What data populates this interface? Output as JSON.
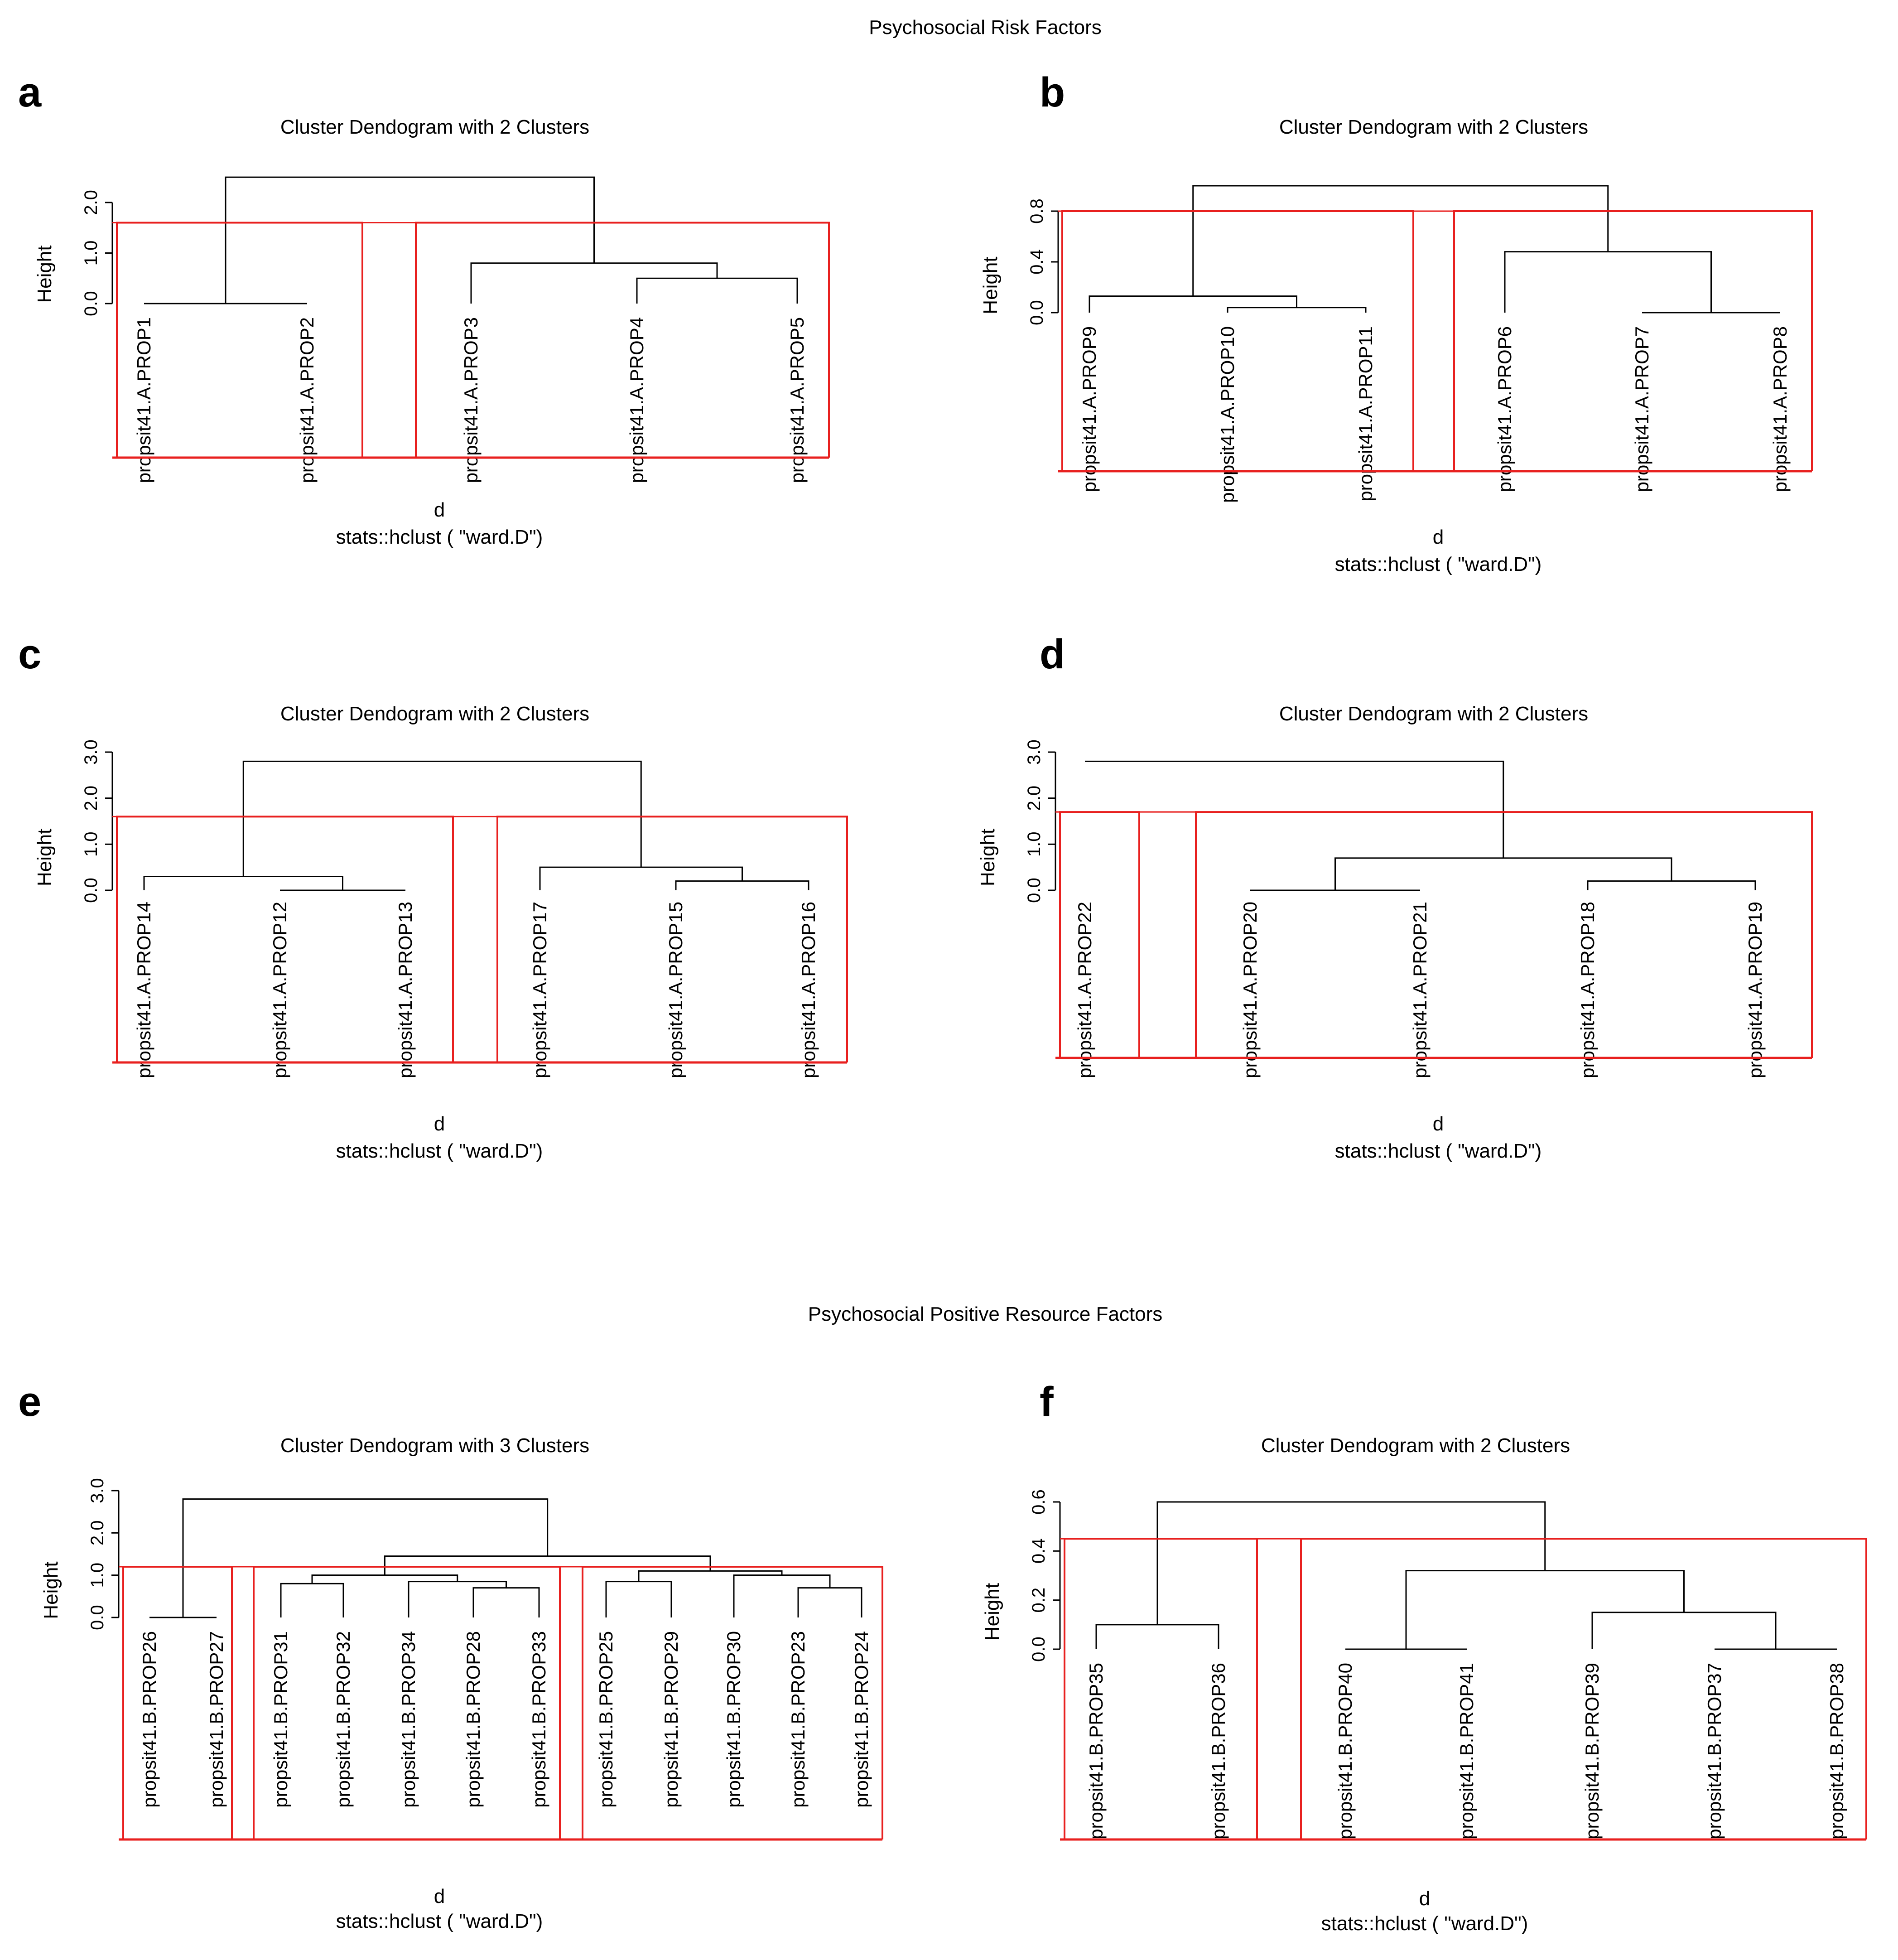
{
  "sections": [
    {
      "title": "Psychosocial Risk Factors"
    },
    {
      "title": "Psychosocial Positive Resource Factors"
    }
  ],
  "chart_data": [
    {
      "type": "dendrogram",
      "panel": "a",
      "title": "Cluster Dendogram with 2 Clusters",
      "ylabel": "Height",
      "xlabel": "d",
      "sublabel": "stats::hclust (  \"ward.D\")",
      "yticks": [
        "0.0",
        "1.0",
        "2.0"
      ],
      "ylim": [
        0,
        2.6
      ],
      "cut_height": 1.6,
      "leaves": [
        "propsit41.A.PROP1",
        "propsit41.A.PROP2",
        "propsit41.A.PROP3",
        "propsit41.A.PROP4",
        "propsit41.A.PROP5"
      ],
      "merges": [
        {
          "a": 0,
          "b": 1,
          "height": 0.0
        },
        {
          "a": 3,
          "b": 4,
          "height": 0.5
        },
        {
          "a": 2,
          "b": -2,
          "height": 0.8
        },
        {
          "a": -1,
          "b": -3,
          "height": 2.5
        }
      ],
      "clusters": [
        [
          0,
          1
        ],
        [
          2,
          3,
          4
        ]
      ]
    },
    {
      "type": "dendrogram",
      "panel": "b",
      "title": "Cluster Dendogram with 2 Clusters",
      "ylabel": "Height",
      "xlabel": "d",
      "sublabel": "stats::hclust (  \"ward.D\")",
      "yticks": [
        "0.0",
        "0.4",
        "0.8"
      ],
      "ylim": [
        0,
        1.0
      ],
      "cut_height": 0.8,
      "leaves": [
        "propsit41.A.PROP9",
        "propsit41.A.PROP10",
        "propsit41.A.PROP11",
        "propsit41.A.PROP6",
        "propsit41.A.PROP7",
        "propsit41.A.PROP8"
      ],
      "merges": [
        {
          "a": 1,
          "b": 2,
          "height": 0.04
        },
        {
          "a": 0,
          "b": -1,
          "height": 0.13
        },
        {
          "a": 4,
          "b": 5,
          "height": 0.0
        },
        {
          "a": 3,
          "b": -3,
          "height": 0.48
        },
        {
          "a": -2,
          "b": -4,
          "height": 1.0
        }
      ],
      "clusters": [
        [
          0,
          1,
          2
        ],
        [
          3,
          4,
          5
        ]
      ]
    },
    {
      "type": "dendrogram",
      "panel": "c",
      "title": "Cluster Dendogram with 2 Clusters",
      "ylabel": "Height",
      "xlabel": "d",
      "sublabel": "stats::hclust (  \"ward.D\")",
      "yticks": [
        "0.0",
        "1.0",
        "2.0",
        "3.0"
      ],
      "ylim": [
        0,
        3.0
      ],
      "cut_height": 1.6,
      "leaves": [
        "propsit41.A.PROP14",
        "propsit41.A.PROP12",
        "propsit41.A.PROP13",
        "propsit41.A.PROP17",
        "propsit41.A.PROP15",
        "propsit41.A.PROP16"
      ],
      "merges": [
        {
          "a": 1,
          "b": 2,
          "height": 0.0
        },
        {
          "a": 0,
          "b": -1,
          "height": 0.3
        },
        {
          "a": 4,
          "b": 5,
          "height": 0.2
        },
        {
          "a": 3,
          "b": -3,
          "height": 0.5
        },
        {
          "a": -2,
          "b": -4,
          "height": 2.8
        }
      ],
      "clusters": [
        [
          0,
          1,
          2
        ],
        [
          3,
          4,
          5
        ]
      ]
    },
    {
      "type": "dendrogram",
      "panel": "d",
      "title": "Cluster Dendogram with 2 Clusters",
      "ylabel": "Height",
      "xlabel": "d",
      "sublabel": "stats::hclust (  \"ward.D\")",
      "yticks": [
        "0.0",
        "1.0",
        "2.0",
        "3.0"
      ],
      "ylim": [
        0,
        3.0
      ],
      "cut_height": 1.7,
      "leaves": [
        "propsit41.A.PROP22",
        "propsit41.A.PROP20",
        "propsit41.A.PROP21",
        "propsit41.A.PROP18",
        "propsit41.A.PROP19"
      ],
      "leaf_heights": [
        2.8,
        0,
        0,
        0,
        0
      ],
      "merges": [
        {
          "a": 1,
          "b": 2,
          "height": 0.0
        },
        {
          "a": 3,
          "b": 4,
          "height": 0.2
        },
        {
          "a": -1,
          "b": -2,
          "height": 0.7
        },
        {
          "a": 0,
          "b": -3,
          "height": 2.8
        }
      ],
      "clusters": [
        [
          0
        ],
        [
          1,
          2,
          3,
          4
        ]
      ]
    },
    {
      "type": "dendrogram",
      "panel": "e",
      "title": "Cluster Dendogram with 3 Clusters",
      "ylabel": "Height",
      "xlabel": "d",
      "sublabel": "stats::hclust (  \"ward.D\")",
      "yticks": [
        "0.0",
        "1.0",
        "2.0",
        "3.0"
      ],
      "ylim": [
        0,
        3.0
      ],
      "cut_height": 1.2,
      "leaves": [
        "propsit41.B.PROP26",
        "propsit41.B.PROP27",
        "propsit41.B.PROP31",
        "propsit41.B.PROP32",
        "propsit41.B.PROP34",
        "propsit41.B.PROP28",
        "propsit41.B.PROP33",
        "propsit41.B.PROP25",
        "propsit41.B.PROP29",
        "propsit41.B.PROP30",
        "propsit41.B.PROP23",
        "propsit41.B.PROP24"
      ],
      "merges": [
        {
          "a": 0,
          "b": 1,
          "height": 0.0
        },
        {
          "a": 5,
          "b": 6,
          "height": 0.7
        },
        {
          "a": 4,
          "b": -2,
          "height": 0.85
        },
        {
          "a": 2,
          "b": 3,
          "height": 0.8
        },
        {
          "a": -4,
          "b": -3,
          "height": 1.0
        },
        {
          "a": 7,
          "b": 8,
          "height": 0.85
        },
        {
          "a": 10,
          "b": 11,
          "height": 0.7
        },
        {
          "a": 9,
          "b": -7,
          "height": 1.0
        },
        {
          "a": -6,
          "b": -8,
          "height": 1.1
        },
        {
          "a": -5,
          "b": -9,
          "height": 1.45
        },
        {
          "a": -1,
          "b": -10,
          "height": 2.8
        }
      ],
      "clusters": [
        [
          0,
          1
        ],
        [
          2,
          3,
          4,
          5,
          6
        ],
        [
          7,
          8,
          9,
          10,
          11
        ]
      ]
    },
    {
      "type": "dendrogram",
      "panel": "f",
      "title": "Cluster Dendogram with 2 Clusters",
      "ylabel": "Height",
      "xlabel": "d",
      "sublabel": "stats::hclust (  \"ward.D\")",
      "yticks": [
        "0.0",
        "0.2",
        "0.4",
        "0.6"
      ],
      "ylim": [
        0,
        0.6
      ],
      "cut_height": 0.45,
      "leaves": [
        "propsit41.B.PROP35",
        "propsit41.B.PROP36",
        "propsit41.B.PROP40",
        "propsit41.B.PROP41",
        "propsit41.B.PROP39",
        "propsit41.B.PROP37",
        "propsit41.B.PROP38"
      ],
      "merges": [
        {
          "a": 0,
          "b": 1,
          "height": 0.1
        },
        {
          "a": 2,
          "b": 3,
          "height": 0.0
        },
        {
          "a": 5,
          "b": 6,
          "height": 0.0
        },
        {
          "a": 4,
          "b": -3,
          "height": 0.15
        },
        {
          "a": -2,
          "b": -4,
          "height": 0.32
        },
        {
          "a": -1,
          "b": -5,
          "height": 0.6
        }
      ],
      "clusters": [
        [
          0,
          1
        ],
        [
          2,
          3,
          4,
          5,
          6
        ]
      ]
    }
  ]
}
